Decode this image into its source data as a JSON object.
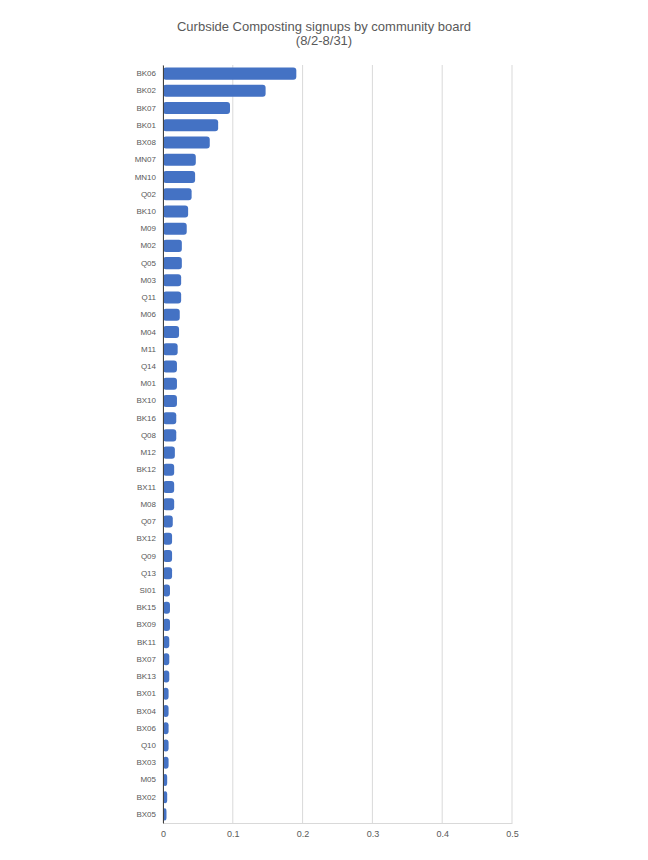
{
  "chart_data": {
    "type": "bar",
    "title": "Curbside Composting signups by community board",
    "subtitle": "(8/2-8/31)",
    "orientation": "horizontal",
    "color": "#4472c4",
    "grid": true,
    "categories": [
      "BK06",
      "BK02",
      "BK07",
      "BK01",
      "BX08",
      "MN07",
      "MN10",
      "Q02",
      "BK10",
      "M09",
      "M02",
      "Q05",
      "M03",
      "Q11",
      "M06",
      "M04",
      "M11",
      "Q14",
      "M01",
      "BX10",
      "BK16",
      "Q08",
      "M12",
      "BK12",
      "BX11",
      "M08",
      "Q07",
      "BX12",
      "Q09",
      "Q13",
      "SI01",
      "BK15",
      "BX09",
      "BK11",
      "BX07",
      "BK13",
      "BX01",
      "BX04",
      "BX06",
      "Q10",
      "BX03",
      "M05",
      "BX02",
      "BX05"
    ],
    "values": [
      0.191,
      0.147,
      0.096,
      0.079,
      0.067,
      0.047,
      0.046,
      0.041,
      0.036,
      0.034,
      0.027,
      0.027,
      0.026,
      0.026,
      0.024,
      0.023,
      0.021,
      0.02,
      0.02,
      0.02,
      0.019,
      0.019,
      0.017,
      0.016,
      0.016,
      0.016,
      0.014,
      0.013,
      0.013,
      0.013,
      0.01,
      0.01,
      0.01,
      0.009,
      0.009,
      0.009,
      0.008,
      0.008,
      0.008,
      0.008,
      0.008,
      0.006,
      0.006,
      0.005
    ],
    "xlim": [
      0,
      0.5
    ],
    "xticks": [
      0,
      0.1,
      0.2,
      0.3,
      0.4,
      0.5
    ]
  }
}
